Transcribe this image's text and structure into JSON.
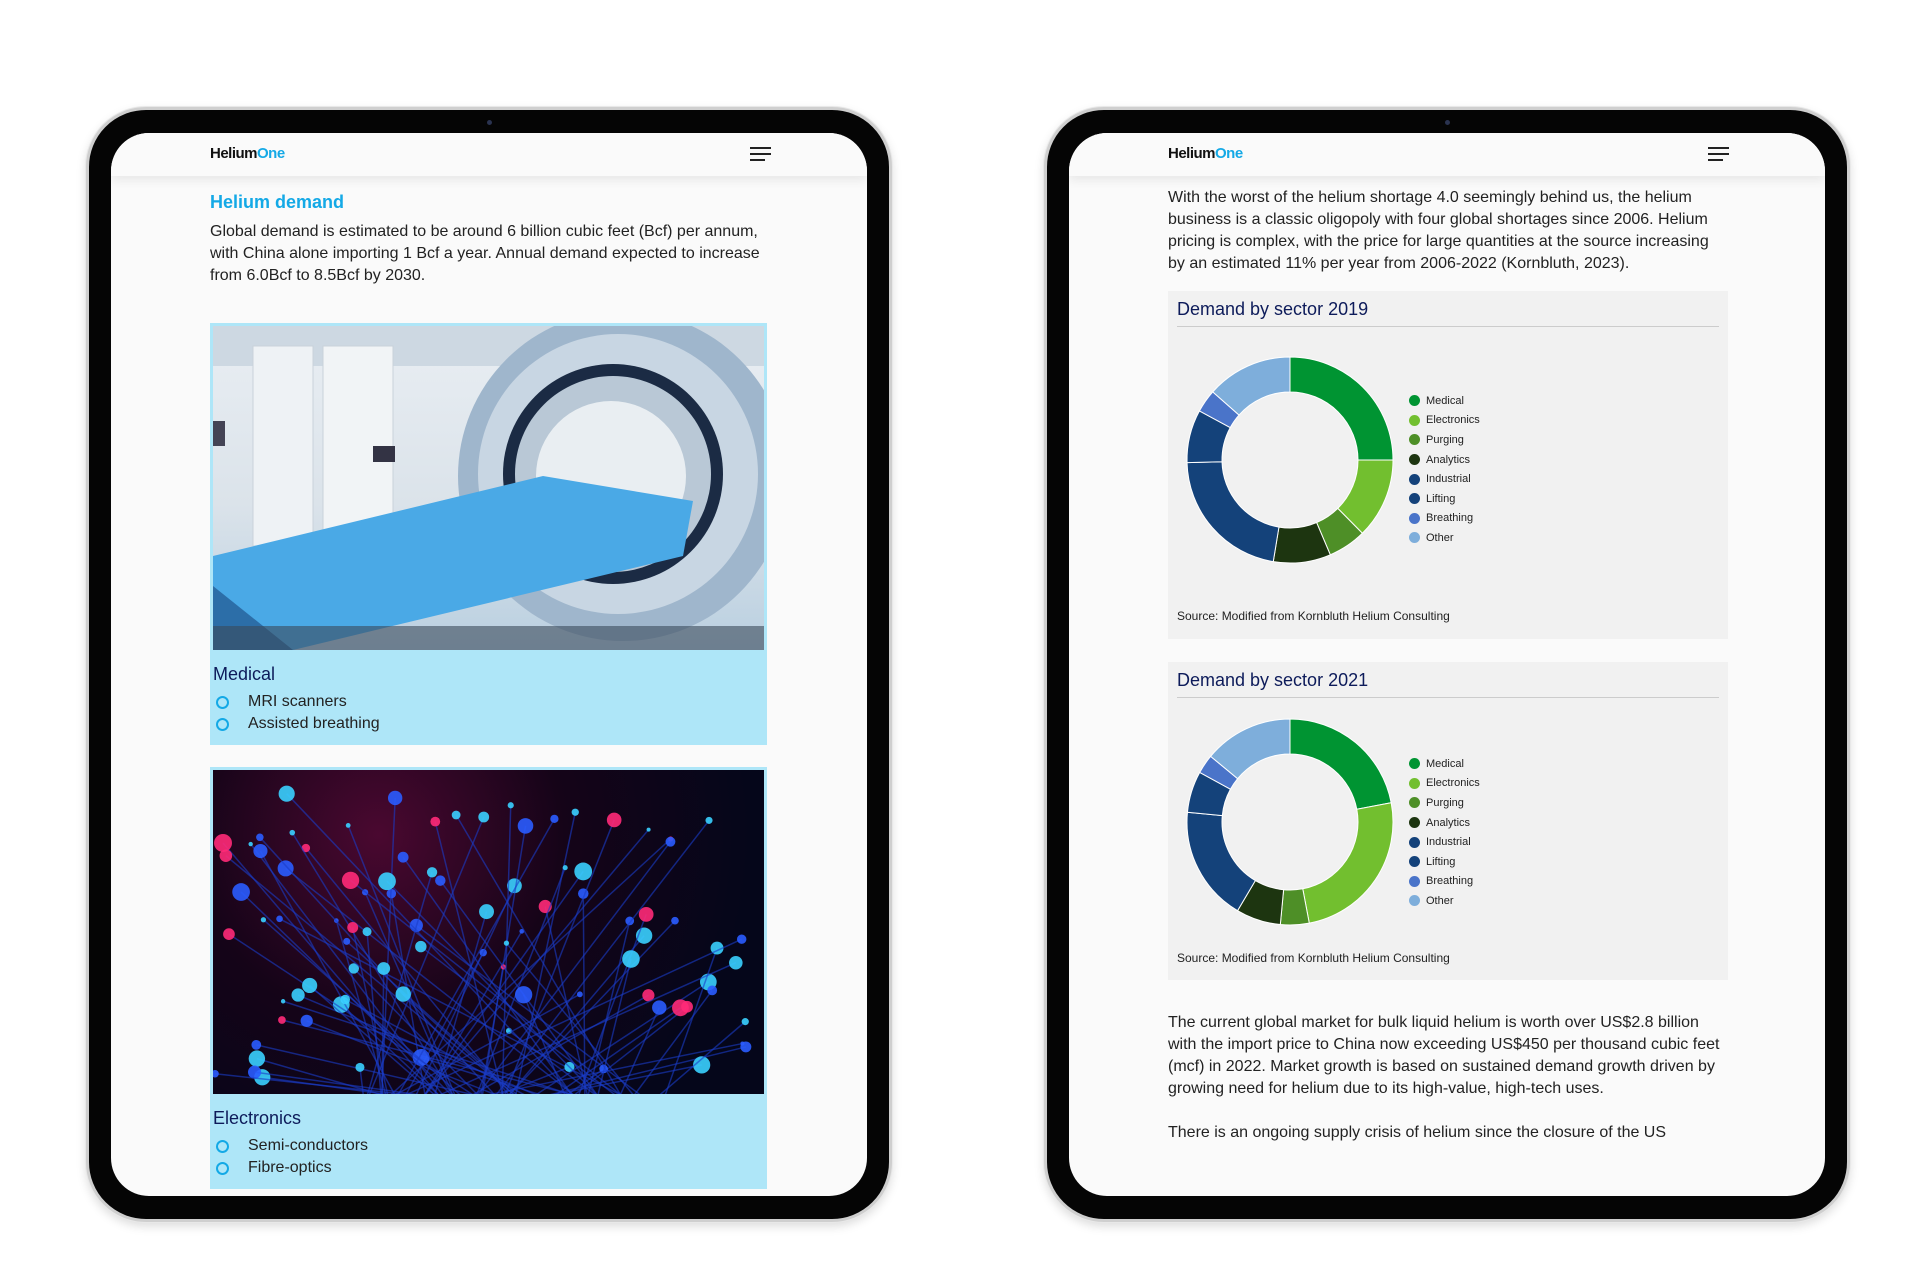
{
  "logo": {
    "part1": "Helium",
    "part2": "One"
  },
  "left": {
    "heading": "Helium demand",
    "intro": "Global demand is estimated to be around 6 billion cubic feet (Bcf) per annum, with China alone importing 1 Bcf a year. Annual demand expected to increase from 6.0Bcf to 8.5Bcf by 2030.",
    "cards": [
      {
        "title": "Medical",
        "items": [
          "MRI scanners",
          "Assisted breathing"
        ]
      },
      {
        "title": "Electronics",
        "items": [
          "Semi-conductors",
          "Fibre-optics"
        ]
      }
    ]
  },
  "right": {
    "intro": "With the worst of the helium shortage 4.0 seemingly behind us, the helium business is a classic oligopoly with four global shortages since 2006. Helium pricing is complex, with the price for large quantities at the source increasing by an estimated 11% per year from 2006-2022 (Kornbluth, 2023).",
    "para2": "The current global market for bulk liquid helium is worth over US$2.8 billion with the import price to China now exceeding US$450 per thousand cubic feet (mcf) in 2022. Market growth is based on sustained demand growth driven by growing need for helium due to its high-value, high-tech uses.",
    "para3": "There is an ongoing supply crisis of helium since the closure of the US"
  },
  "chart_data": [
    {
      "type": "pie",
      "title": "Demand by sector 2019",
      "source": "Source: Modified from Kornbluth Helium Consulting",
      "legend": "right",
      "categories": [
        "Medical",
        "Electronics",
        "Purging",
        "Analytics",
        "Industrial",
        "Lifting",
        "Breathing",
        "Other"
      ],
      "values": [
        25,
        12.6,
        6,
        9,
        22,
        8.3,
        3.6,
        13.5
      ],
      "colors": [
        "#009432",
        "#72bf2f",
        "#4e8f27",
        "#1d3510",
        "#14427a",
        "#14427a",
        "#4a74c9",
        "#7eaedb"
      ]
    },
    {
      "type": "pie",
      "title": "Demand by sector 2021",
      "source": "Source: Modified from Kornbluth Helium Consulting",
      "legend": "right",
      "categories": [
        "Medical",
        "Electronics",
        "Purging",
        "Analytics",
        "Industrial",
        "Lifting",
        "Breathing",
        "Other"
      ],
      "values": [
        22,
        25,
        4.5,
        7,
        18,
        6.5,
        3,
        14
      ],
      "colors": [
        "#009432",
        "#72bf2f",
        "#4e8f27",
        "#1d3510",
        "#14427a",
        "#14427a",
        "#4a74c9",
        "#7eaedb"
      ]
    }
  ]
}
